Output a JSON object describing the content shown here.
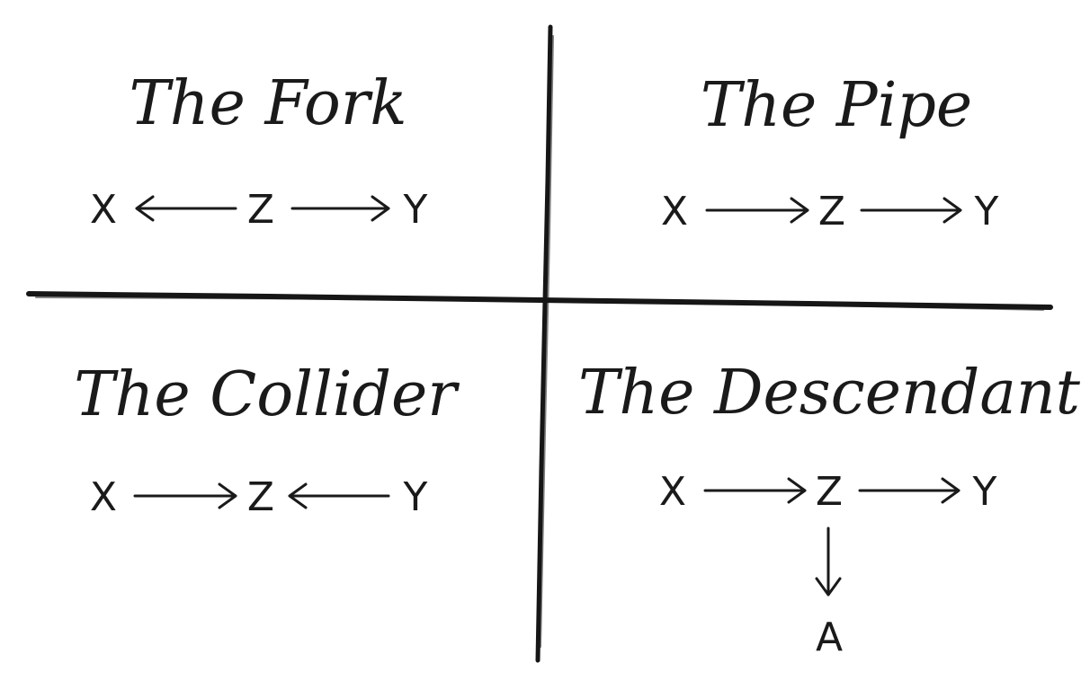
{
  "panels": [
    {
      "title": "The Fork",
      "nodes": [
        "X",
        "Z",
        "Y"
      ],
      "edges": [
        [
          "Z",
          "X"
        ],
        [
          "Z",
          "Y"
        ]
      ]
    },
    {
      "title": "The Pipe",
      "nodes": [
        "X",
        "Z",
        "Y"
      ],
      "edges": [
        [
          "X",
          "Z"
        ],
        [
          "Z",
          "Y"
        ]
      ]
    },
    {
      "title": "The Collider",
      "nodes": [
        "X",
        "Z",
        "Y"
      ],
      "edges": [
        [
          "X",
          "Z"
        ],
        [
          "Y",
          "Z"
        ]
      ]
    },
    {
      "title": "The Descendant",
      "nodes": [
        "X",
        "Z",
        "Y",
        "A"
      ],
      "edges": [
        [
          "X",
          "Z"
        ],
        [
          "Z",
          "Y"
        ],
        [
          "Z",
          "A"
        ]
      ]
    }
  ]
}
